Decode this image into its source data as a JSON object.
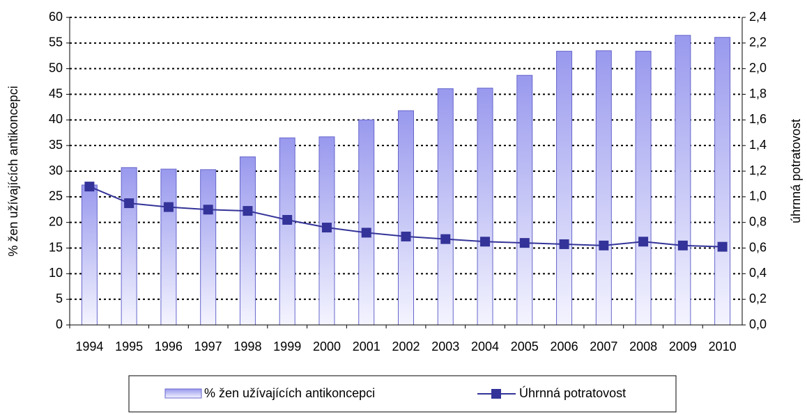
{
  "chart_data": {
    "type": "bar",
    "categories": [
      "1994",
      "1995",
      "1996",
      "1997",
      "1998",
      "1999",
      "2000",
      "2001",
      "2002",
      "2003",
      "2004",
      "2005",
      "2006",
      "2007",
      "2008",
      "2009",
      "2010"
    ],
    "series": [
      {
        "name": "% žen užívajících antikoncepci",
        "type": "bar",
        "color": "#9999ee",
        "values": [
          27.3,
          30.7,
          30.4,
          30.3,
          32.8,
          36.5,
          36.7,
          40.0,
          41.8,
          46.1,
          46.2,
          48.7,
          53.4,
          53.5,
          53.4,
          56.5,
          56.1
        ]
      },
      {
        "name": "Úhrnná potratovost",
        "type": "line",
        "axis": "y2",
        "color": "#333399",
        "values": [
          1.08,
          0.95,
          0.92,
          0.9,
          0.89,
          0.82,
          0.76,
          0.72,
          0.69,
          0.67,
          0.65,
          0.64,
          0.63,
          0.62,
          0.65,
          0.62,
          0.61
        ]
      }
    ],
    "ylabel": "% žen užívajících antikoncepci",
    "y2label": "úhrnná potratovost",
    "ylim": [
      0,
      60
    ],
    "yticks": [
      0,
      5,
      10,
      15,
      20,
      25,
      30,
      35,
      40,
      45,
      50,
      55,
      60
    ],
    "y2lim": [
      0,
      2.4
    ],
    "y2ticks": [
      {
        "value": 0,
        "label": "0,0"
      },
      {
        "value": 0.2,
        "label": "0,2"
      },
      {
        "value": 0.4,
        "label": "0,4"
      },
      {
        "value": 0.6,
        "label": "0,6"
      },
      {
        "value": 0.8,
        "label": "0,8"
      },
      {
        "value": 1.0,
        "label": "1,0"
      },
      {
        "value": 1.2,
        "label": "1,2"
      },
      {
        "value": 1.4,
        "label": "1,4"
      },
      {
        "value": 1.6,
        "label": "1,6"
      },
      {
        "value": 1.8,
        "label": "1,8"
      },
      {
        "value": 2.0,
        "label": "2,0"
      },
      {
        "value": 2.2,
        "label": "2,2"
      },
      {
        "value": 2.4,
        "label": "2,4"
      }
    ],
    "grid": true,
    "legend": "bottom"
  }
}
